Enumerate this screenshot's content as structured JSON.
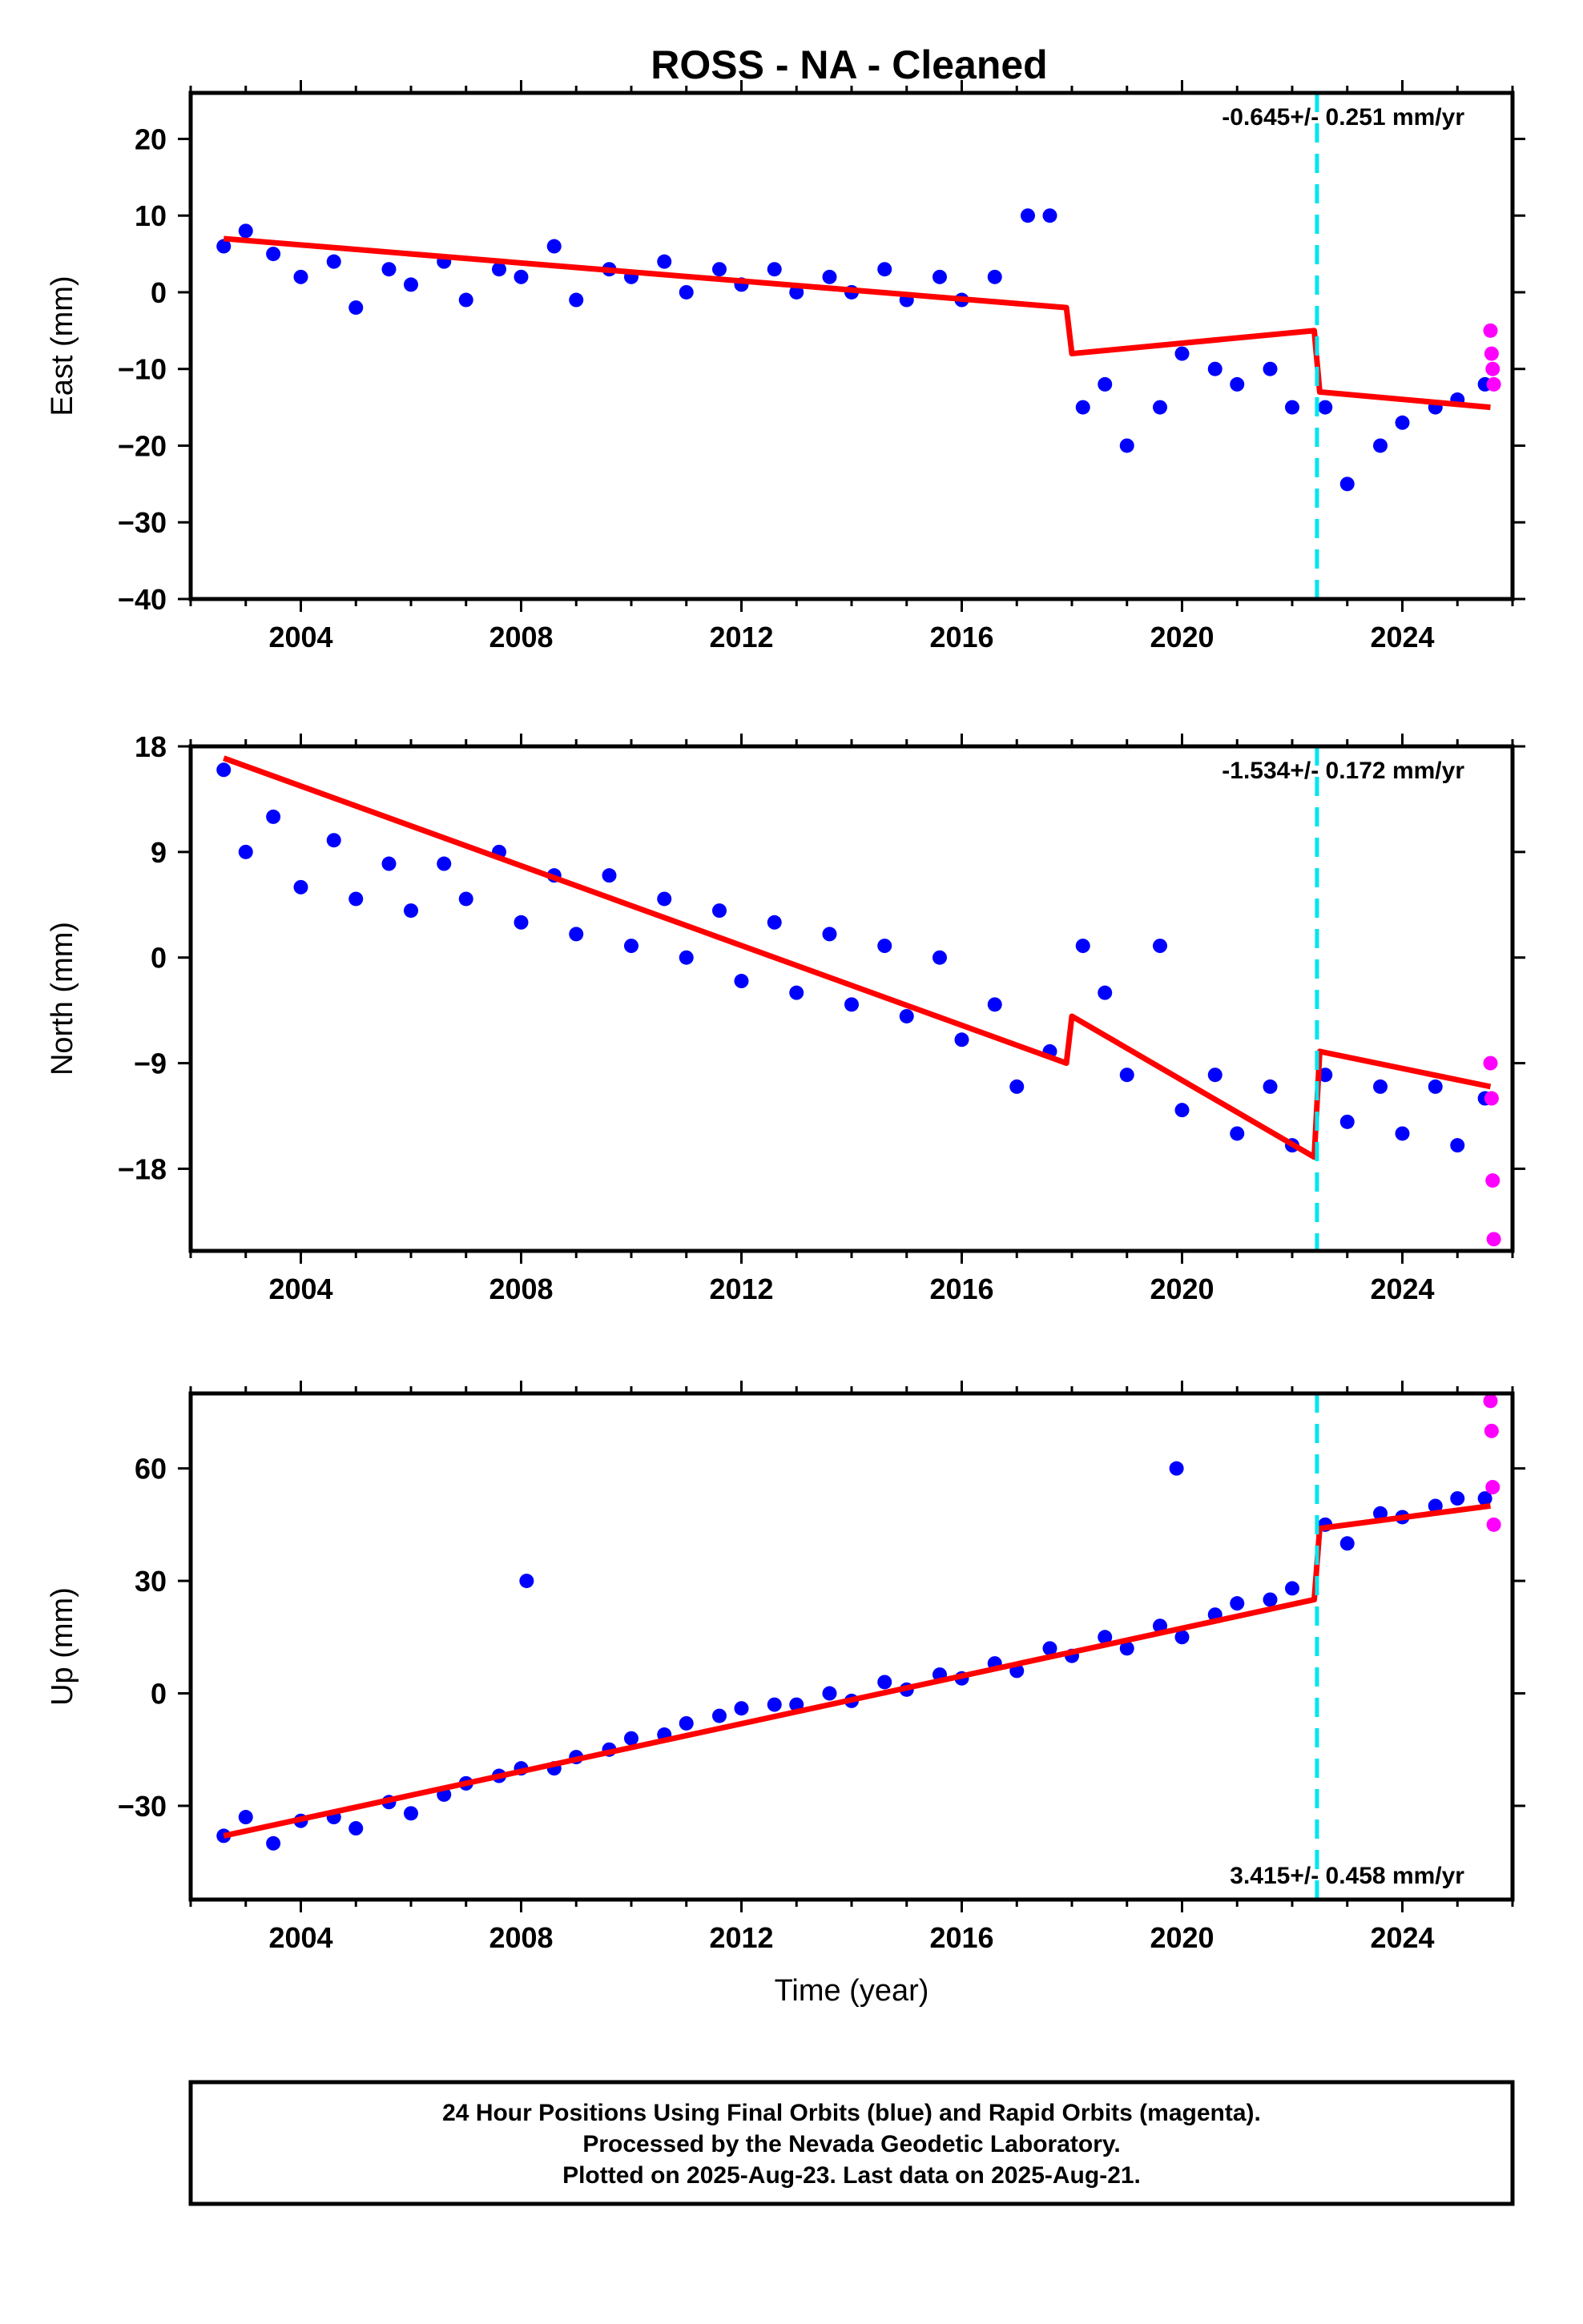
{
  "title": "ROSS  - NA - Cleaned",
  "colors": {
    "final_orbits": "#0000ff",
    "rapid_orbits": "#ff00ff",
    "model": "#ff0000",
    "break_line": "#00e5ee"
  },
  "chart_data": [
    {
      "type": "scatter",
      "panel": "east",
      "ylabel": "East (mm)",
      "xlim": [
        2002.0,
        2026.0
      ],
      "ylim": [
        -40,
        26
      ],
      "yticks": [
        -40,
        -30,
        -20,
        -10,
        0,
        10,
        20
      ],
      "xticks": [
        2004,
        2008,
        2012,
        2016,
        2020,
        2024
      ],
      "rate_label": "-0.645+/- 0.251 mm/yr",
      "break_epoch": 2022.45,
      "legend": "none",
      "grid": false,
      "series": [
        {
          "name": "Final Orbits",
          "color": "blue",
          "x": [
            2002.6,
            2003.0,
            2003.5,
            2004.0,
            2004.6,
            2005.0,
            2005.6,
            2006.0,
            2006.6,
            2007.0,
            2007.6,
            2008.0,
            2008.6,
            2009.0,
            2009.6,
            2010.0,
            2010.6,
            2011.0,
            2011.6,
            2012.0,
            2012.6,
            2013.0,
            2013.6,
            2014.0,
            2014.6,
            2015.0,
            2015.6,
            2016.0,
            2016.6,
            2017.2,
            2017.6,
            2018.2,
            2018.6,
            2019.0,
            2019.6,
            2020.0,
            2020.6,
            2021.0,
            2021.6,
            2022.0,
            2022.6,
            2023.0,
            2023.6,
            2024.0,
            2024.6,
            2025.0,
            2025.5
          ],
          "y": [
            6,
            8,
            5,
            2,
            4,
            -2,
            3,
            1,
            4,
            -1,
            3,
            2,
            6,
            -1,
            3,
            2,
            4,
            0,
            3,
            1,
            3,
            0,
            2,
            0,
            3,
            -1,
            2,
            -1,
            2,
            10,
            10,
            -15,
            -12,
            -20,
            -15,
            -8,
            -10,
            -12,
            -10,
            -15,
            -15,
            -25,
            -20,
            -17,
            -15,
            -14,
            -12
          ]
        },
        {
          "name": "Rapid Orbits",
          "color": "magenta",
          "x": [
            2025.6,
            2025.62,
            2025.64,
            2025.66
          ],
          "y": [
            -5,
            -8,
            -10,
            -12
          ]
        },
        {
          "name": "Model",
          "color": "red",
          "x": [
            2002.6,
            2017.9,
            2018.0,
            2022.4,
            2022.5,
            2025.6
          ],
          "y": [
            7,
            -2,
            -8,
            -5,
            -13,
            -15
          ]
        }
      ]
    },
    {
      "type": "scatter",
      "panel": "north",
      "ylabel": "North (mm)",
      "xlim": [
        2002.0,
        2026.0
      ],
      "ylim": [
        -25,
        18
      ],
      "yticks": [
        -18,
        -9,
        0,
        9,
        18
      ],
      "xticks": [
        2004,
        2008,
        2012,
        2016,
        2020,
        2024
      ],
      "rate_label": "-1.534+/- 0.172 mm/yr",
      "break_epoch": 2022.45,
      "legend": "none",
      "grid": false,
      "series": [
        {
          "name": "Final Orbits",
          "color": "blue",
          "x": [
            2002.6,
            2003.0,
            2003.5,
            2004.0,
            2004.6,
            2005.0,
            2005.6,
            2006.0,
            2006.6,
            2007.0,
            2007.6,
            2008.0,
            2008.6,
            2009.0,
            2009.6,
            2010.0,
            2010.6,
            2011.0,
            2011.6,
            2012.0,
            2012.6,
            2013.0,
            2013.6,
            2014.0,
            2014.6,
            2015.0,
            2015.6,
            2016.0,
            2016.6,
            2017.0,
            2017.6,
            2018.2,
            2018.6,
            2019.0,
            2019.6,
            2020.0,
            2020.6,
            2021.0,
            2021.6,
            2022.0,
            2022.6,
            2023.0,
            2023.6,
            2024.0,
            2024.6,
            2025.0,
            2025.5
          ],
          "y": [
            16,
            9,
            12,
            6,
            10,
            5,
            8,
            4,
            8,
            5,
            9,
            3,
            7,
            2,
            7,
            1,
            5,
            0,
            4,
            -2,
            3,
            -3,
            2,
            -4,
            1,
            -5,
            0,
            -7,
            -4,
            -11,
            -8,
            1,
            -3,
            -10,
            1,
            -13,
            -10,
            -15,
            -11,
            -16,
            -10,
            -14,
            -11,
            -15,
            -11,
            -16,
            -12
          ]
        },
        {
          "name": "Rapid Orbits",
          "color": "magenta",
          "x": [
            2025.6,
            2025.62,
            2025.64,
            2025.66
          ],
          "y": [
            -9,
            -12,
            -19,
            -24
          ]
        },
        {
          "name": "Model",
          "color": "red",
          "x": [
            2002.6,
            2017.9,
            2018.0,
            2022.4,
            2022.5,
            2025.6
          ],
          "y": [
            17,
            -9,
            -5,
            -17,
            -8,
            -11
          ]
        }
      ]
    },
    {
      "type": "scatter",
      "panel": "up",
      "ylabel": "Up (mm)",
      "xlabel": "Time (year)",
      "xlim": [
        2002.0,
        2026.0
      ],
      "ylim": [
        -55,
        80
      ],
      "yticks": [
        -30,
        0,
        30,
        60
      ],
      "xticks": [
        2004,
        2008,
        2012,
        2016,
        2020,
        2024
      ],
      "rate_label": "3.415+/- 0.458 mm/yr",
      "break_epoch": 2022.45,
      "legend": "none",
      "grid": false,
      "series": [
        {
          "name": "Final Orbits",
          "color": "blue",
          "x": [
            2002.6,
            2003.0,
            2003.5,
            2004.0,
            2004.6,
            2005.0,
            2005.6,
            2006.0,
            2006.6,
            2007.0,
            2007.6,
            2008.0,
            2008.1,
            2008.6,
            2009.0,
            2009.6,
            2010.0,
            2010.6,
            2011.0,
            2011.6,
            2012.0,
            2012.6,
            2013.0,
            2013.6,
            2014.0,
            2014.6,
            2015.0,
            2015.6,
            2016.0,
            2016.6,
            2017.0,
            2017.6,
            2018.0,
            2018.6,
            2019.0,
            2019.6,
            2019.9,
            2020.0,
            2020.6,
            2021.0,
            2021.6,
            2022.0,
            2022.6,
            2023.0,
            2023.6,
            2024.0,
            2024.6,
            2025.0,
            2025.5
          ],
          "y": [
            -38,
            -33,
            -40,
            -34,
            -33,
            -36,
            -29,
            -32,
            -27,
            -24,
            -22,
            -20,
            30,
            -20,
            -17,
            -15,
            -12,
            -11,
            -8,
            -6,
            -4,
            -3,
            -3,
            0,
            -2,
            3,
            1,
            5,
            4,
            8,
            6,
            12,
            10,
            15,
            12,
            18,
            60,
            15,
            21,
            24,
            25,
            28,
            45,
            40,
            48,
            47,
            50,
            52,
            52
          ]
        },
        {
          "name": "Rapid Orbits",
          "color": "magenta",
          "x": [
            2025.6,
            2025.62,
            2025.64,
            2025.66
          ],
          "y": [
            78,
            70,
            55,
            45
          ]
        },
        {
          "name": "Model",
          "color": "red",
          "x": [
            2002.6,
            2022.4,
            2022.5,
            2025.6
          ],
          "y": [
            -38,
            25,
            44,
            50
          ]
        }
      ]
    }
  ],
  "footer": {
    "line1": "24 Hour Positions Using Final Orbits (blue) and Rapid Orbits (magenta).",
    "line2": "Processed by the Nevada Geodetic Laboratory.",
    "line3": "Plotted on 2025-Aug-23. Last data on 2025-Aug-21."
  }
}
